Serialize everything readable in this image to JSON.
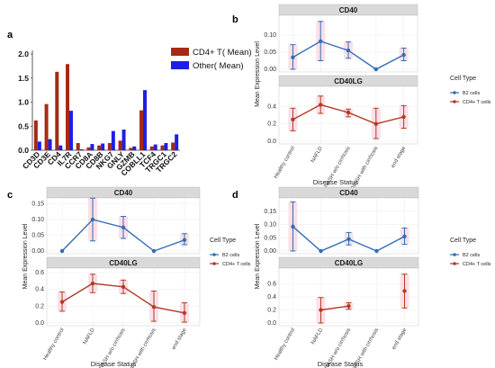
{
  "colors": {
    "cd4_bar": "#a52a16",
    "other_bar": "#1e1ee6",
    "b2": "#2f6db5",
    "cd4t": "#b23a22",
    "strip": "#d9d9d9",
    "ribbon": "#f7c6d6"
  },
  "chart_data": [
    {
      "type": "bar",
      "panel_label": "a",
      "categories": [
        "CD3D",
        "CD3E",
        "CD4",
        "IL7R",
        "CCR7",
        "CD8A",
        "CD8B",
        "NKG7",
        "GNLY",
        "GZMB",
        "COBLL1",
        "TCF4",
        "TRGC1",
        "TRGC2"
      ],
      "series": [
        {
          "name": "CD4+ T( Mean)",
          "values": [
            0.62,
            0.96,
            1.63,
            1.79,
            0.15,
            0.06,
            0.1,
            0.15,
            0.2,
            0.05,
            0.83,
            0.08,
            0.1,
            0.16
          ]
        },
        {
          "name": "Other( Mean)",
          "values": [
            0.18,
            0.23,
            0.1,
            0.82,
            0.02,
            0.13,
            0.14,
            0.4,
            0.43,
            0.08,
            1.25,
            0.12,
            0.15,
            0.33
          ]
        }
      ],
      "ylim": [
        0,
        2.0
      ],
      "yticks": [
        "0.0",
        "0.5",
        "1.0",
        "1.5",
        "2.0"
      ],
      "legend_position": "top-right"
    },
    {
      "type": "line",
      "panel_label": "b",
      "x": [
        "Healthy control",
        "NAFLD",
        "NASH w/o cirrhosis",
        "NASH with cirrhosis",
        "end stage"
      ],
      "xlabel": "Disease Status",
      "ylabel": "Mean Expression Level",
      "legend_title": "Cell Type",
      "legend_position": "right",
      "facets": [
        {
          "strip": "CD40",
          "ylim": [
            0,
            0.15
          ],
          "yticks": [
            "0.00",
            "0.05",
            "0.10"
          ],
          "series": [
            {
              "name": "B2 cells",
              "values": [
                0.035,
                0.082,
                0.055,
                0.0,
                0.042
              ],
              "lower": [
                0.0,
                0.025,
                0.032,
                0.0,
                0.025
              ],
              "upper": [
                0.072,
                0.14,
                0.08,
                0.0,
                0.062
              ]
            }
          ]
        },
        {
          "strip": "CD40LG",
          "ylim": [
            0,
            0.6
          ],
          "yticks": [
            "0.0",
            "0.2",
            "0.4"
          ],
          "series": [
            {
              "name": "CD4+ T cells",
              "values": [
                0.25,
                0.42,
                0.33,
                0.2,
                0.28
              ],
              "lower": [
                0.12,
                0.32,
                0.28,
                0.03,
                0.15
              ],
              "upper": [
                0.38,
                0.52,
                0.37,
                0.38,
                0.41
              ]
            }
          ]
        }
      ]
    },
    {
      "type": "line",
      "panel_label": "c",
      "x": [
        "Healthy control",
        "NAFLD",
        "NASH w/o cirrhosis",
        "NASH with cirrhosis",
        "end stage"
      ],
      "xlabel": "Disease Status",
      "ylabel": "Mean Expression Level",
      "legend_title": "Cell Type",
      "legend_position": "right",
      "facets": [
        {
          "strip": "CD40",
          "ylim": [
            0,
            0.16
          ],
          "yticks": [
            "0.00",
            "0.05",
            "0.10",
            "0.15"
          ],
          "series": [
            {
              "name": "B2 cells",
              "values": [
                0.0,
                0.1,
                0.075,
                0.0,
                0.035
              ],
              "lower": [
                0.0,
                0.032,
                0.04,
                0.0,
                0.02
              ],
              "upper": [
                0.0,
                0.168,
                0.11,
                0.0,
                0.055
              ]
            }
          ]
        },
        {
          "strip": "CD40LG",
          "ylim": [
            0,
            0.62
          ],
          "yticks": [
            "0.0",
            "0.2",
            "0.4",
            "0.6"
          ],
          "series": [
            {
              "name": "CD4+ T cells",
              "values": [
                0.25,
                0.47,
                0.43,
                0.19,
                0.12
              ],
              "lower": [
                0.14,
                0.36,
                0.35,
                0.02,
                0.01
              ],
              "upper": [
                0.37,
                0.58,
                0.51,
                0.38,
                0.24
              ]
            }
          ]
        }
      ]
    },
    {
      "type": "line",
      "panel_label": "d",
      "x": [
        "Healthy control",
        "NAFLD",
        "NASH w/o cirrhosis",
        "NASH with cirrhosis",
        "end stage"
      ],
      "xlabel": "Disease Status",
      "ylabel": "Mean Expression Level",
      "legend_title": "Cell Type",
      "legend_position": "right",
      "facets": [
        {
          "strip": "CD40",
          "ylim": [
            0,
            0.19
          ],
          "yticks": [
            "0.00",
            "0.05",
            "0.10",
            "0.15"
          ],
          "series": [
            {
              "name": "B2 cells",
              "values": [
                0.092,
                0.0,
                0.045,
                0.0,
                0.055
              ],
              "lower": [
                0.0,
                0.0,
                0.023,
                0.0,
                0.025
              ],
              "upper": [
                0.185,
                0.0,
                0.07,
                0.0,
                0.087
              ]
            }
          ]
        },
        {
          "strip": "CD40LG",
          "ylim": [
            0,
            0.8
          ],
          "yticks": [
            "0.0",
            "0.2",
            "0.4",
            "0.6"
          ],
          "series": [
            {
              "name": "CD4+ T cells",
              "values": [
                null,
                0.2,
                0.26,
                null,
                0.49
              ],
              "lower": [
                null,
                0.0,
                0.21,
                null,
                0.23
              ],
              "upper": [
                null,
                0.39,
                0.31,
                null,
                0.75
              ]
            }
          ]
        }
      ]
    }
  ]
}
